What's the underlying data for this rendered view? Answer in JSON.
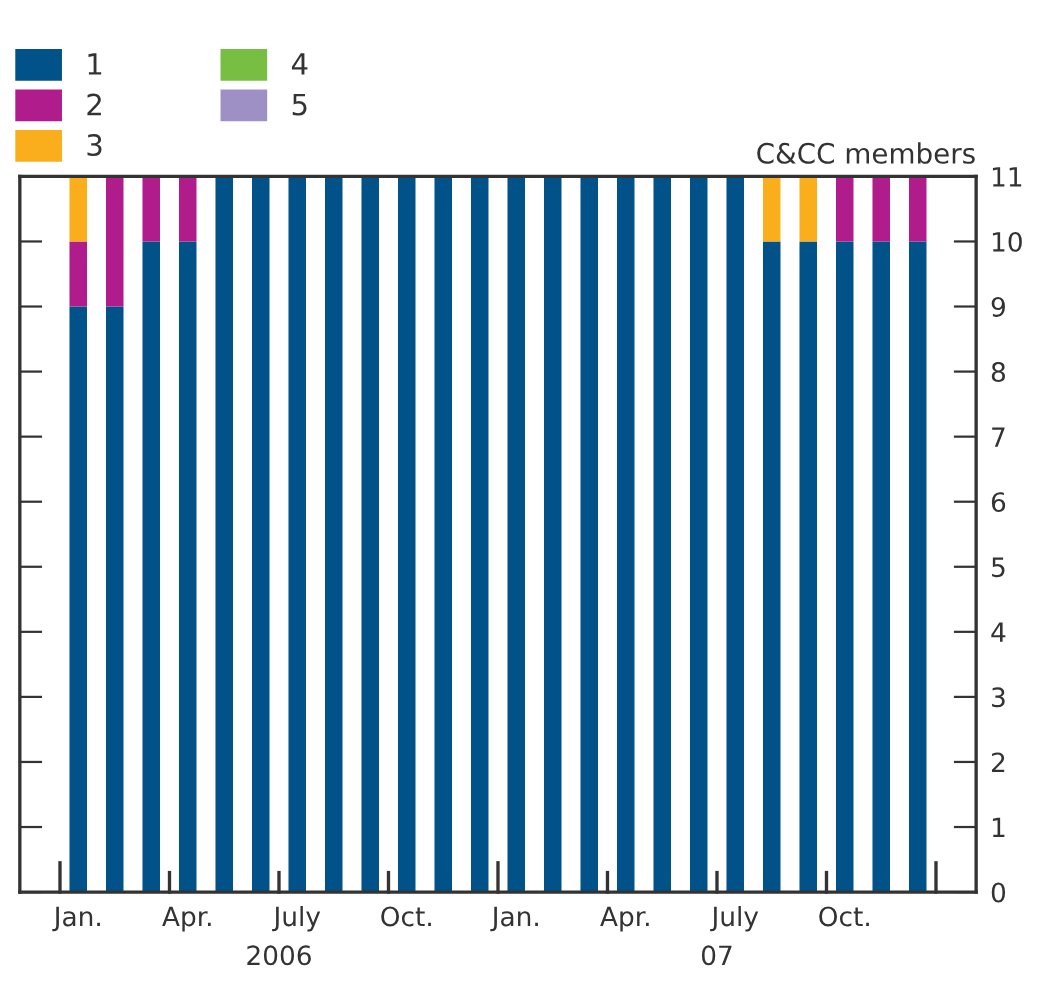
{
  "chart_data": {
    "type": "bar",
    "stacked": true,
    "ylabel": "C&CC members",
    "categories": [
      "Jan.",
      null,
      null,
      "Apr.",
      null,
      null,
      "July",
      null,
      null,
      "Oct.",
      null,
      null,
      "Jan.",
      null,
      null,
      "Apr.",
      null,
      null,
      "July",
      null,
      null,
      "Oct.",
      null,
      null
    ],
    "series": [
      {
        "name": "1",
        "color": "#005288",
        "values": [
          9,
          9,
          10,
          10,
          11,
          11,
          11,
          11,
          11,
          11,
          11,
          11,
          11,
          11,
          11,
          11,
          11,
          11,
          11,
          10,
          10,
          10,
          10,
          10
        ]
      },
      {
        "name": "2",
        "color": "#b01c8b",
        "values": [
          1,
          2,
          1,
          1,
          0,
          0,
          0,
          0,
          0,
          0,
          0,
          0,
          0,
          0,
          0,
          0,
          0,
          0,
          0,
          0,
          0,
          1,
          1,
          1
        ]
      },
      {
        "name": "3",
        "color": "#fbae1b",
        "values": [
          1,
          0,
          0,
          0,
          0,
          0,
          0,
          0,
          0,
          0,
          0,
          0,
          0,
          0,
          0,
          0,
          0,
          0,
          0,
          1,
          1,
          0,
          0,
          0
        ]
      },
      {
        "name": "4",
        "color": "#78be43",
        "values": [
          0,
          0,
          0,
          0,
          0,
          0,
          0,
          0,
          0,
          0,
          0,
          0,
          0,
          0,
          0,
          0,
          0,
          0,
          0,
          0,
          0,
          0,
          0,
          0
        ]
      },
      {
        "name": "5",
        "color": "#9e8fc5",
        "values": [
          0,
          0,
          0,
          0,
          0,
          0,
          0,
          0,
          0,
          0,
          0,
          0,
          0,
          0,
          0,
          0,
          0,
          0,
          0,
          0,
          0,
          0,
          0,
          0
        ]
      }
    ],
    "ylim": [
      0,
      11
    ],
    "yticks": [
      0,
      1,
      2,
      3,
      4,
      5,
      6,
      7,
      8,
      9,
      10,
      11
    ],
    "annotations": [
      "2006",
      "07"
    ],
    "legend": "top left",
    "grid": false
  }
}
